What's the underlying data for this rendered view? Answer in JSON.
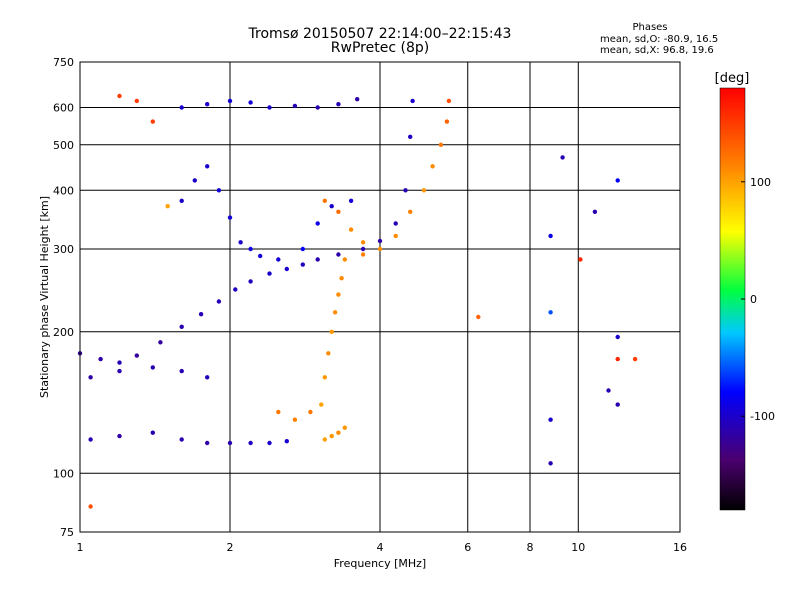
{
  "title_line1": "Tromsø 20150507 22:14:00–22:15:43",
  "title_line2": "RwPretec (8p)",
  "phase_info": {
    "title": "Phases",
    "o_line": "mean, sd,O: -80.9, 16.5",
    "x_line": "mean, sd,X:  96.8, 19.6"
  },
  "chart_data": {
    "type": "scatter",
    "title": "Tromsø 20150507 22:14:00–22:15:43",
    "subtitle": "RwPretec (8p)",
    "xlabel": "Frequency [MHz]",
    "ylabel": "Stationary phase Virtual Height [km]",
    "xscale": "log",
    "yscale": "log",
    "xlim": [
      1,
      16
    ],
    "ylim": [
      75,
      750
    ],
    "x_ticks": [
      "1",
      "2",
      "4",
      "6",
      "8",
      "10",
      "16"
    ],
    "y_ticks": [
      "75",
      "100",
      "200",
      "300",
      "400",
      "500",
      "600",
      "750"
    ],
    "grid": true,
    "colorbar": {
      "label": "[deg]",
      "range": [
        -180,
        180
      ],
      "ticks": [
        "100",
        "0",
        "-100"
      ]
    },
    "series": [
      {
        "points": [
          [
            1.0,
            180,
            -120
          ],
          [
            1.1,
            175,
            -115
          ],
          [
            1.2,
            172,
            -110
          ],
          [
            1.3,
            178,
            -120
          ],
          [
            1.45,
            190,
            -118
          ],
          [
            1.6,
            205,
            -112
          ],
          [
            1.75,
            218,
            -110
          ],
          [
            1.9,
            232,
            -108
          ],
          [
            2.05,
            246,
            -105
          ],
          [
            2.2,
            256,
            -105
          ],
          [
            2.4,
            266,
            -100
          ],
          [
            2.6,
            272,
            -100
          ],
          [
            2.8,
            278,
            -105
          ],
          [
            3.0,
            285,
            -110
          ],
          [
            3.3,
            292,
            -115
          ],
          [
            3.7,
            300,
            -110
          ],
          [
            4.0,
            312,
            -115
          ],
          [
            4.3,
            340,
            -110
          ],
          [
            4.5,
            400,
            -110
          ],
          [
            4.6,
            520,
            -105
          ],
          [
            4.65,
            620,
            -100
          ]
        ]
      },
      {
        "points": [
          [
            1.05,
            160,
            -115
          ],
          [
            1.2,
            165,
            -112
          ],
          [
            1.4,
            168,
            -110
          ],
          [
            1.6,
            165,
            -110
          ],
          [
            1.8,
            160,
            -108
          ]
        ]
      },
      {
        "points": [
          [
            1.05,
            118,
            -110
          ],
          [
            1.2,
            120,
            -115
          ],
          [
            1.4,
            122,
            -110
          ],
          [
            1.6,
            118,
            -112
          ],
          [
            1.8,
            116,
            -115
          ],
          [
            2.0,
            116,
            -110
          ],
          [
            2.2,
            116,
            -105
          ],
          [
            2.4,
            116,
            -100
          ],
          [
            2.6,
            117,
            -100
          ]
        ]
      },
      {
        "points": [
          [
            1.6,
            600,
            -100
          ],
          [
            1.8,
            610,
            -100
          ],
          [
            2.0,
            620,
            -95
          ],
          [
            2.2,
            615,
            -95
          ],
          [
            2.4,
            600,
            -100
          ],
          [
            2.7,
            605,
            -110
          ],
          [
            3.0,
            600,
            -110
          ],
          [
            3.3,
            610,
            -110
          ],
          [
            3.6,
            625,
            -115
          ]
        ]
      },
      {
        "points": [
          [
            1.6,
            380,
            -100
          ],
          [
            1.7,
            420,
            -100
          ],
          [
            1.8,
            450,
            -100
          ],
          [
            1.9,
            400,
            -95
          ],
          [
            2.0,
            350,
            -95
          ],
          [
            2.1,
            310,
            -100
          ],
          [
            2.2,
            300,
            -90
          ],
          [
            2.3,
            290,
            -95
          ],
          [
            2.5,
            285,
            -95
          ],
          [
            2.8,
            300,
            -80
          ],
          [
            3.0,
            340,
            -90
          ],
          [
            3.2,
            370,
            -100
          ],
          [
            3.5,
            380,
            -95
          ]
        ]
      },
      {
        "points": [
          [
            3.05,
            140,
            100
          ],
          [
            3.1,
            160,
            105
          ],
          [
            3.15,
            180,
            110
          ],
          [
            3.2,
            200,
            105
          ],
          [
            3.25,
            220,
            110
          ],
          [
            3.3,
            240,
            110
          ],
          [
            3.35,
            260,
            110
          ]
        ]
      },
      {
        "points": [
          [
            3.1,
            118,
            100
          ],
          [
            3.2,
            120,
            105
          ],
          [
            3.3,
            122,
            110
          ],
          [
            3.4,
            125,
            105
          ]
        ]
      },
      {
        "points": [
          [
            2.5,
            135,
            120
          ],
          [
            2.7,
            130,
            115
          ],
          [
            2.9,
            135,
            120
          ]
        ]
      },
      {
        "points": [
          [
            3.4,
            285,
            110
          ],
          [
            3.7,
            292,
            115
          ],
          [
            4.0,
            300,
            110
          ],
          [
            4.3,
            320,
            110
          ],
          [
            4.6,
            360,
            115
          ],
          [
            4.9,
            400,
            105
          ],
          [
            5.1,
            450,
            110
          ],
          [
            5.3,
            500,
            120
          ],
          [
            5.45,
            560,
            130
          ],
          [
            5.5,
            620,
            140
          ]
        ]
      },
      {
        "points": [
          [
            3.1,
            380,
            120
          ],
          [
            3.3,
            360,
            125
          ],
          [
            3.5,
            330,
            110
          ],
          [
            3.7,
            310,
            110
          ]
        ]
      },
      {
        "points": [
          [
            1.05,
            85,
            140
          ],
          [
            1.2,
            635,
            150
          ],
          [
            1.3,
            620,
            150
          ],
          [
            1.4,
            560,
            150
          ],
          [
            1.5,
            370,
            100
          ],
          [
            8.8,
            320,
            -90
          ],
          [
            8.8,
            220,
            -60
          ],
          [
            8.8,
            130,
            -100
          ],
          [
            8.8,
            105,
            -110
          ],
          [
            9.3,
            470,
            -110
          ],
          [
            10.1,
            285,
            160
          ],
          [
            10.8,
            360,
            -110
          ],
          [
            12.0,
            420,
            -80
          ],
          [
            12.0,
            195,
            -100
          ],
          [
            11.5,
            150,
            -110
          ],
          [
            12.0,
            175,
            160
          ],
          [
            12.0,
            140,
            -110
          ],
          [
            13.0,
            175,
            150
          ],
          [
            6.3,
            215,
            130
          ]
        ]
      }
    ]
  }
}
